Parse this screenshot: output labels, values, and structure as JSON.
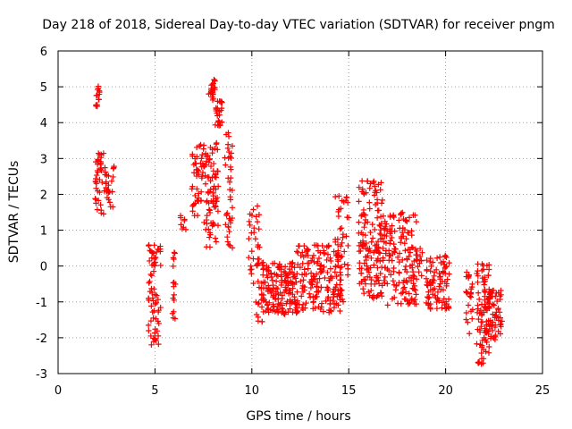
{
  "chart_data": {
    "type": "scatter",
    "title": "Day 218 of 2018, Sidereal Day-to-day VTEC variation (SDTVAR) for receiver pngm",
    "xlabel": "GPS time / hours",
    "ylabel": "SDTVAR / TECUs",
    "xlim": [
      0,
      25
    ],
    "ylim": [
      -3,
      6
    ],
    "xticks": [
      0,
      5,
      10,
      15,
      20,
      25
    ],
    "yticks": [
      -3,
      -2,
      -1,
      0,
      1,
      2,
      3,
      4,
      5,
      6
    ],
    "grid": true,
    "marker": "+",
    "color": "#ff0000",
    "clusters": [
      {
        "t0": 1.95,
        "t1": 2.15,
        "ymin": 4.4,
        "ymax": 5.05,
        "n": 14
      },
      {
        "t0": 1.9,
        "t1": 2.4,
        "ymin": 1.2,
        "ymax": 3.35,
        "n": 40
      },
      {
        "t0": 2.4,
        "t1": 2.9,
        "ymin": 1.5,
        "ymax": 2.8,
        "n": 25
      },
      {
        "t0": 4.65,
        "t1": 5.3,
        "ymin": -2.25,
        "ymax": 0.65,
        "n": 70
      },
      {
        "t0": 5.9,
        "t1": 6.1,
        "ymin": -1.5,
        "ymax": 0.4,
        "n": 16
      },
      {
        "t0": 6.3,
        "t1": 6.6,
        "ymin": 0.9,
        "ymax": 1.6,
        "n": 8
      },
      {
        "t0": 6.9,
        "t1": 7.5,
        "ymin": 1.4,
        "ymax": 3.5,
        "n": 45
      },
      {
        "t0": 7.5,
        "t1": 8.3,
        "ymin": 0.5,
        "ymax": 3.5,
        "n": 80
      },
      {
        "t0": 7.75,
        "t1": 8.1,
        "ymin": 4.6,
        "ymax": 5.2,
        "n": 20
      },
      {
        "t0": 8.1,
        "t1": 8.5,
        "ymin": 3.9,
        "ymax": 4.6,
        "n": 25
      },
      {
        "t0": 8.6,
        "t1": 9.0,
        "ymin": 0.5,
        "ymax": 3.9,
        "n": 40
      },
      {
        "t0": 9.8,
        "t1": 10.4,
        "ymin": -0.6,
        "ymax": 1.7,
        "n": 35
      },
      {
        "t0": 10.2,
        "t1": 10.6,
        "ymin": -1.8,
        "ymax": -0.6,
        "n": 10
      },
      {
        "t0": 10.5,
        "t1": 12.3,
        "ymin": -1.35,
        "ymax": 0.1,
        "n": 160
      },
      {
        "t0": 12.3,
        "t1": 14.6,
        "ymin": -1.3,
        "ymax": 0.6,
        "n": 170
      },
      {
        "t0": 14.3,
        "t1": 15.0,
        "ymin": -1.0,
        "ymax": 2.0,
        "n": 50
      },
      {
        "t0": 15.5,
        "t1": 16.8,
        "ymin": -0.9,
        "ymax": 2.4,
        "n": 150
      },
      {
        "t0": 16.8,
        "t1": 18.5,
        "ymin": -1.1,
        "ymax": 1.5,
        "n": 150
      },
      {
        "t0": 18.5,
        "t1": 18.8,
        "ymin": -0.3,
        "ymax": 0.7,
        "n": 12
      },
      {
        "t0": 19.0,
        "t1": 20.2,
        "ymin": -1.2,
        "ymax": 0.3,
        "n": 90
      },
      {
        "t0": 21.0,
        "t1": 21.4,
        "ymin": -2.0,
        "ymax": 0.0,
        "n": 25
      },
      {
        "t0": 21.6,
        "t1": 22.3,
        "ymin": -2.75,
        "ymax": 0.1,
        "n": 80
      },
      {
        "t0": 22.0,
        "t1": 22.95,
        "ymin": -2.1,
        "ymax": -0.65,
        "n": 70
      }
    ]
  }
}
